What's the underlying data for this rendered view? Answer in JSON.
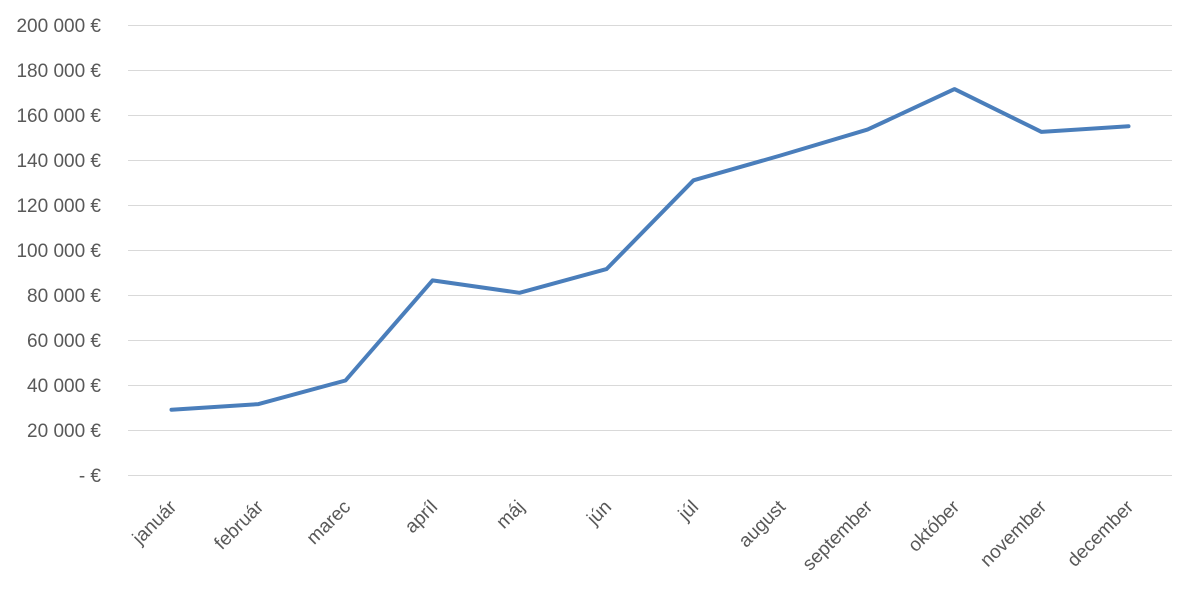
{
  "chart_data": {
    "type": "line",
    "title": "",
    "xlabel": "",
    "ylabel": "",
    "categories": [
      "január",
      "február",
      "marec",
      "apríl",
      "máj",
      "jún",
      "júl",
      "august",
      "september",
      "október",
      "november",
      "december"
    ],
    "y_tick_labels": [
      "- €",
      "20 000 €",
      "40 000 €",
      "60 000 €",
      "80 000 €",
      "100 000 €",
      "120 000 €",
      "140 000 €",
      "160 000 €",
      "180 000 €",
      "200 000 €"
    ],
    "y_ticks": [
      0,
      20000,
      40000,
      60000,
      80000,
      100000,
      120000,
      140000,
      160000,
      180000,
      200000
    ],
    "ylim": [
      0,
      200000
    ],
    "grid": true,
    "legend": "none",
    "series": [
      {
        "color": "#4a7ebb",
        "values": [
          29000,
          31500,
          42000,
          86500,
          81000,
          91500,
          131000,
          142000,
          153500,
          171500,
          152500,
          155000
        ]
      }
    ]
  }
}
